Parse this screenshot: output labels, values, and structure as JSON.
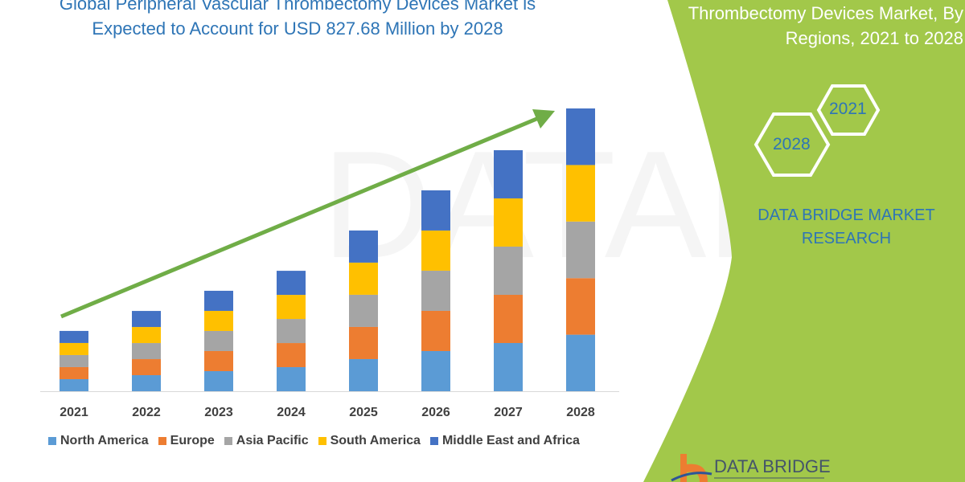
{
  "title_lines": [
    "Global Peripheral Vascular Thrombectomy Devices Market is",
    "Expected to Account for USD 827.68 Million by 2028"
  ],
  "side_title_lines": [
    "Thrombectomy Devices Market, By",
    "Regions, 2021 to 2028"
  ],
  "hexagons": [
    "2021",
    "2028"
  ],
  "brand_lines": [
    "DATA BRIDGE MARKET",
    "RESEARCH"
  ],
  "logo_text": "DATA BRIDGE",
  "colors": {
    "panel": "#a2c84a",
    "accent_text": "#2e75b6",
    "arrow": "#70ad47"
  },
  "chart_data": {
    "type": "bar",
    "stacked": true,
    "categories": [
      "2021",
      "2022",
      "2023",
      "2024",
      "2025",
      "2026",
      "2027",
      "2028"
    ],
    "series": [
      {
        "name": "North America",
        "color": "#5b9bd5",
        "values": [
          35.3,
          47.0,
          58.8,
          70.5,
          94.1,
          117.6,
          141.1,
          165.5
        ]
      },
      {
        "name": "Europe",
        "color": "#ed7d31",
        "values": [
          35.3,
          47.0,
          58.8,
          70.5,
          94.1,
          117.6,
          141.1,
          165.5
        ]
      },
      {
        "name": "Asia Pacific",
        "color": "#a5a5a5",
        "values": [
          35.3,
          47.0,
          58.8,
          70.5,
          94.1,
          117.6,
          141.1,
          165.6
        ]
      },
      {
        "name": "South America",
        "color": "#ffc000",
        "values": [
          35.3,
          47.0,
          58.8,
          70.5,
          94.1,
          117.6,
          141.1,
          165.5
        ]
      },
      {
        "name": "Middle East and Africa",
        "color": "#4472c4",
        "values": [
          35.3,
          47.0,
          58.8,
          70.5,
          94.1,
          117.6,
          141.1,
          165.6
        ]
      }
    ],
    "ylim": [
      0,
      827.68
    ],
    "y_axis_shown": false,
    "grid": false,
    "legend_position": "bottom",
    "trend_arrow": true
  }
}
